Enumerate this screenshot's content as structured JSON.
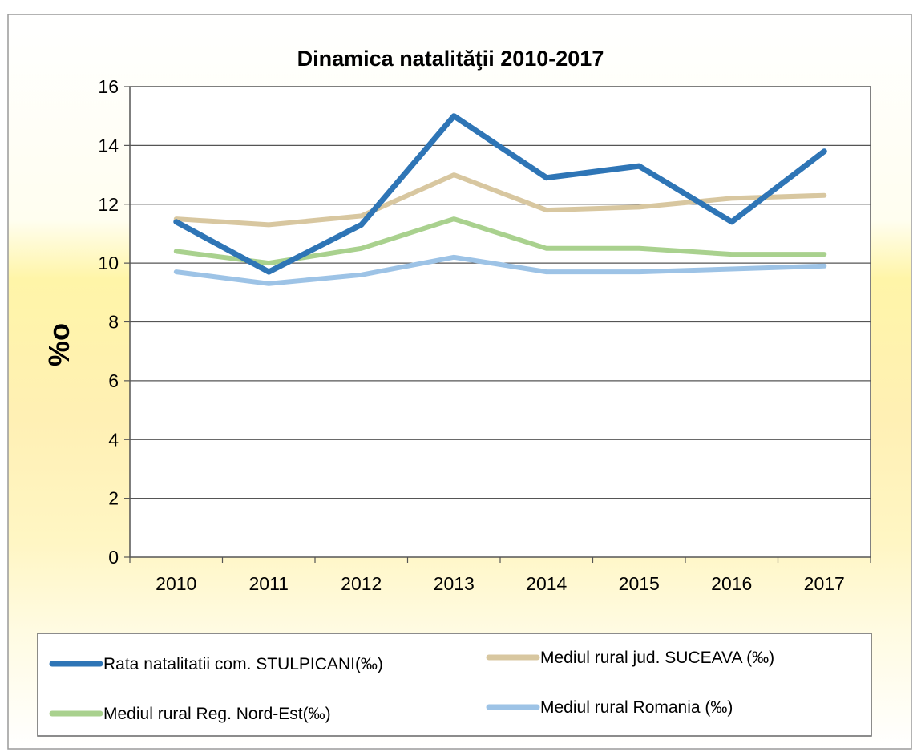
{
  "chart_data": {
    "type": "line",
    "title": "Dinamica natalităţii 2010-2017",
    "xlabel": "",
    "ylabel": "%o",
    "categories": [
      "2010",
      "2011",
      "2012",
      "2013",
      "2014",
      "2015",
      "2016",
      "2017"
    ],
    "ylim": [
      0,
      16
    ],
    "yticks": [
      "0",
      "2",
      "4",
      "6",
      "8",
      "10",
      "12",
      "14",
      "16"
    ],
    "grid": true,
    "legend_position": "bottom",
    "series": [
      {
        "name": "Rata natalitatii com. STULPICANI(‰)",
        "color": "#2E75B6",
        "values": [
          11.4,
          9.7,
          11.3,
          15.0,
          12.9,
          13.3,
          11.4,
          13.8
        ]
      },
      {
        "name": "Mediul rural jud. SUCEAVA (‰)",
        "color": "#D8C7A0",
        "values": [
          11.5,
          11.3,
          11.6,
          13.0,
          11.8,
          11.9,
          12.2,
          12.3
        ]
      },
      {
        "name": "Mediul rural Reg. Nord-Est(‰)",
        "color": "#A9D18E",
        "values": [
          10.4,
          10.0,
          10.5,
          11.5,
          10.5,
          10.5,
          10.3,
          10.3
        ]
      },
      {
        "name": "Mediul rural Romania (‰)",
        "color": "#9DC3E6",
        "values": [
          9.7,
          9.3,
          9.6,
          10.2,
          9.7,
          9.7,
          9.8,
          9.9
        ]
      }
    ]
  }
}
